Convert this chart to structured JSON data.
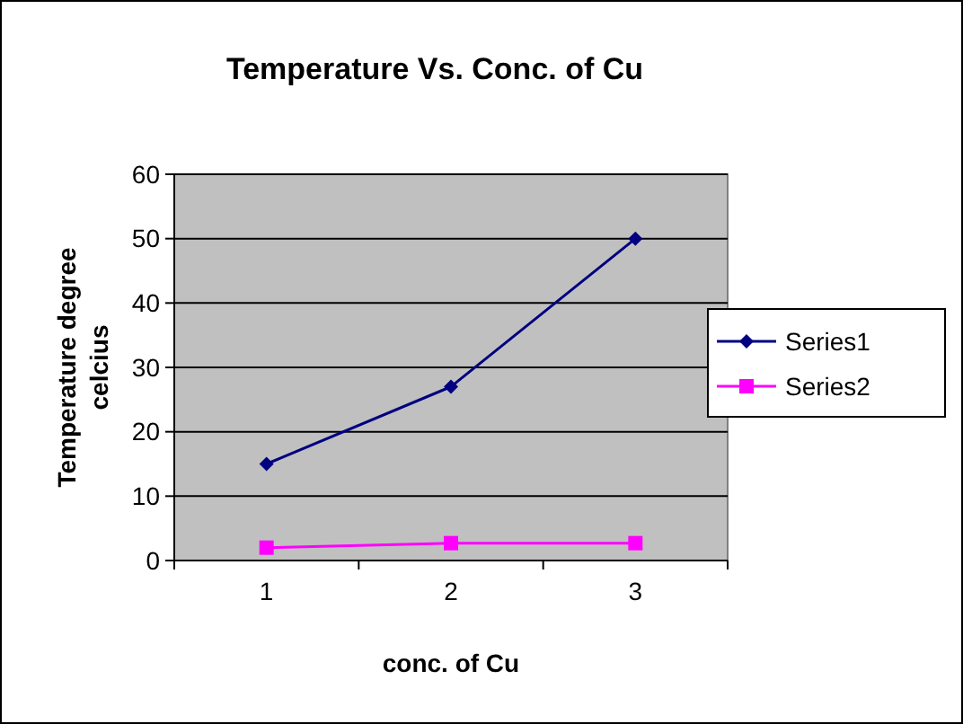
{
  "chart_data": {
    "type": "line",
    "title": "Temperature Vs. Conc. of Cu",
    "xlabel": "conc. of Cu",
    "ylabel": "Temperature degree celcius",
    "categories": [
      "1",
      "2",
      "3"
    ],
    "ylim": [
      0,
      60
    ],
    "yticks": [
      0,
      10,
      20,
      30,
      40,
      50,
      60
    ],
    "grid": "y",
    "legend": "right",
    "series": [
      {
        "name": "Series1",
        "color": "#000080",
        "marker": "diamond",
        "values": [
          15,
          27,
          50
        ]
      },
      {
        "name": "Series2",
        "color": "#ff00ff",
        "marker": "square",
        "values": [
          2,
          2.7,
          2.7
        ]
      }
    ]
  }
}
